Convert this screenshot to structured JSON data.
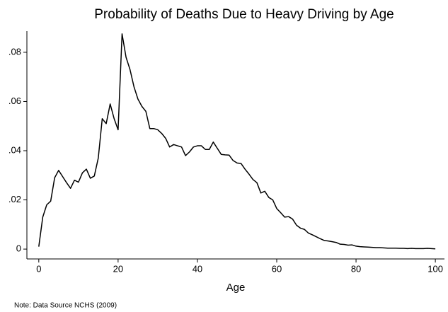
{
  "chart_data": {
    "type": "line",
    "title": "Probability of Deaths Due to Heavy Driving by Age",
    "xlabel": "Age",
    "note": "Note: Data Source NCHS (2009)",
    "x": [
      0,
      1,
      2,
      3,
      4,
      5,
      6,
      7,
      8,
      9,
      10,
      11,
      12,
      13,
      14,
      15,
      16,
      17,
      18,
      19,
      20,
      21,
      22,
      23,
      24,
      25,
      26,
      27,
      28,
      29,
      30,
      31,
      32,
      33,
      34,
      35,
      36,
      37,
      38,
      39,
      40,
      41,
      42,
      43,
      44,
      45,
      46,
      47,
      48,
      49,
      50,
      51,
      52,
      53,
      54,
      55,
      56,
      57,
      58,
      59,
      60,
      61,
      62,
      63,
      64,
      65,
      66,
      67,
      68,
      69,
      70,
      71,
      72,
      73,
      74,
      75,
      76,
      77,
      78,
      79,
      80,
      81,
      82,
      83,
      84,
      85,
      86,
      87,
      88,
      89,
      90,
      91,
      92,
      93,
      94,
      95,
      96,
      97,
      98,
      99,
      100
    ],
    "series": [
      {
        "color": "#000000",
        "values": [
          0.001,
          0.013,
          0.018,
          0.0195,
          0.029,
          0.032,
          0.0295,
          0.027,
          0.0247,
          0.028,
          0.0272,
          0.031,
          0.0325,
          0.0288,
          0.0297,
          0.037,
          0.053,
          0.051,
          0.059,
          0.053,
          0.0485,
          0.0875,
          0.078,
          0.073,
          0.066,
          0.061,
          0.058,
          0.056,
          0.049,
          0.049,
          0.0485,
          0.047,
          0.045,
          0.0415,
          0.0425,
          0.042,
          0.0415,
          0.038,
          0.0395,
          0.0415,
          0.042,
          0.042,
          0.0405,
          0.0405,
          0.0435,
          0.041,
          0.0385,
          0.0383,
          0.0382,
          0.036,
          0.035,
          0.0348,
          0.0325,
          0.0305,
          0.0283,
          0.027,
          0.0228,
          0.0235,
          0.021,
          0.02,
          0.0165,
          0.0148,
          0.013,
          0.0132,
          0.0122,
          0.0097,
          0.0085,
          0.008,
          0.0065,
          0.0058,
          0.005,
          0.0042,
          0.0035,
          0.0033,
          0.003,
          0.0027,
          0.002,
          0.0019,
          0.0016,
          0.0017,
          0.0012,
          0.001,
          0.0009,
          0.0008,
          0.0007,
          0.0006,
          0.0006,
          0.0005,
          0.0004,
          0.0004,
          0.0004,
          0.0003,
          0.0003,
          0.0002,
          0.0003,
          0.0002,
          0.0002,
          0.0002,
          0.0003,
          0.0002,
          0.0001
        ]
      }
    ],
    "xlim": [
      -3,
      102.3
    ],
    "ylim": [
      -0.004,
      0.0886
    ],
    "xticks": [
      0,
      20,
      40,
      60,
      80,
      100
    ],
    "yticks": [
      0,
      {
        "value": 0.02,
        "label": ".02"
      },
      {
        "value": 0.04,
        "label": ".04"
      },
      {
        "value": 0.06,
        "label": ".06"
      },
      {
        "value": 0.08,
        "label": ".08"
      }
    ],
    "grid": false
  }
}
